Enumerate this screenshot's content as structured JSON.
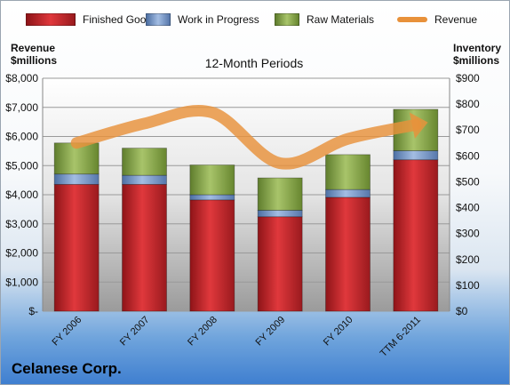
{
  "chart_data": {
    "type": "bar",
    "subtitle": "12-Month Periods",
    "company": "Celanese Corp.",
    "categories": [
      "FY 2006",
      "FY 2007",
      "FY 2008",
      "FY 2009",
      "FY 2010",
      "TTM 6-2011"
    ],
    "left_axis": {
      "label_line1": "Revenue",
      "label_line2": "$millions",
      "ylim": [
        0,
        8000
      ],
      "ticks": [
        "$-",
        "$1,000",
        "$2,000",
        "$3,000",
        "$4,000",
        "$5,000",
        "$6,000",
        "$7,000",
        "$8,000"
      ]
    },
    "right_axis": {
      "label_line1": "Inventory",
      "label_line2": "$millions",
      "ylim": [
        0,
        900
      ],
      "ticks": [
        "$0",
        "$100",
        "$200",
        "$300",
        "$400",
        "$500",
        "$600",
        "$700",
        "$800",
        "$900"
      ]
    },
    "series": [
      {
        "name": "Finished Goods",
        "axis": "right",
        "color": "#c0262b",
        "values": [
          490,
          490,
          430,
          365,
          440,
          585
        ]
      },
      {
        "name": "Work in Progress",
        "axis": "right",
        "color": "#6f93c7",
        "values": [
          40,
          35,
          20,
          25,
          30,
          35
        ]
      },
      {
        "name": "Raw Materials",
        "axis": "right",
        "color": "#86a94a",
        "values": [
          120,
          105,
          115,
          125,
          135,
          160
        ]
      },
      {
        "name": "Revenue",
        "axis": "left",
        "type": "line",
        "color": "#e8913a",
        "values": [
          5778,
          6444,
          6823,
          5082,
          5918,
          6400
        ]
      }
    ],
    "grid": true,
    "legend_position": "top"
  }
}
